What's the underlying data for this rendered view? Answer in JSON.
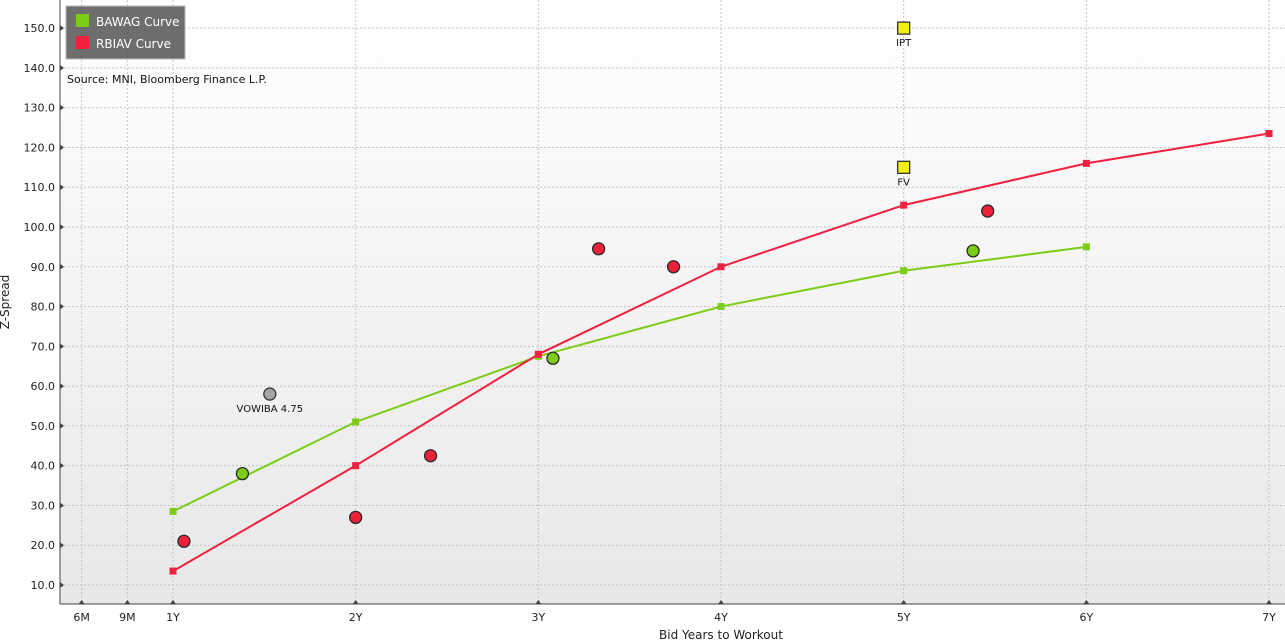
{
  "chart_data": {
    "type": "scatter",
    "xlabel": "Bid Years to Workout",
    "ylabel": "Z-Spread",
    "source": "Source: MNI, Bloomberg Finance L.P.",
    "xlim": [
      0.5,
      7.2
    ],
    "ylim": [
      5,
      155
    ],
    "x_ticks": [
      {
        "value": 0.5,
        "label": "6M"
      },
      {
        "value": 0.75,
        "label": "9M"
      },
      {
        "value": 1,
        "label": "1Y"
      },
      {
        "value": 2,
        "label": "2Y"
      },
      {
        "value": 3,
        "label": "3Y"
      },
      {
        "value": 4,
        "label": "4Y"
      },
      {
        "value": 5,
        "label": "5Y"
      },
      {
        "value": 6,
        "label": "6Y"
      },
      {
        "value": 7,
        "label": "7Y"
      }
    ],
    "y_ticks": [
      {
        "value": 10,
        "label": "10.0"
      },
      {
        "value": 20,
        "label": "20.0"
      },
      {
        "value": 30,
        "label": "30.0"
      },
      {
        "value": 40,
        "label": "40.0"
      },
      {
        "value": 50,
        "label": "50.0"
      },
      {
        "value": 60,
        "label": "60.0"
      },
      {
        "value": 70,
        "label": "70.0"
      },
      {
        "value": 80,
        "label": "80.0"
      },
      {
        "value": 90,
        "label": "90.0"
      },
      {
        "value": 100,
        "label": "100.0"
      },
      {
        "value": 110,
        "label": "110.0"
      },
      {
        "value": 120,
        "label": "120.0"
      },
      {
        "value": 130,
        "label": "130.0"
      },
      {
        "value": 140,
        "label": "140.0"
      },
      {
        "value": 150,
        "label": "150.0"
      }
    ],
    "grid": true,
    "legend": {
      "position": "top-left",
      "entries": [
        "BAWAG Curve",
        "RBIAV Curve"
      ]
    },
    "curves": [
      {
        "name": "BAWAG Curve",
        "color": "#7ccd17",
        "x": [
          1,
          2,
          3,
          4,
          5,
          6
        ],
        "y": [
          28.5,
          51,
          67.5,
          80,
          89,
          95
        ]
      },
      {
        "name": "RBIAV Curve",
        "color": "#f0203f",
        "x": [
          1,
          2,
          3,
          4,
          5,
          6,
          7
        ],
        "y": [
          13.5,
          40,
          68,
          90,
          105.5,
          116,
          123.5
        ]
      }
    ],
    "bonds": [
      {
        "group": "BAWAG",
        "color": "#7ccd17",
        "points": [
          {
            "x": 1.38,
            "y": 38
          },
          {
            "x": 3.08,
            "y": 67
          },
          {
            "x": 5.38,
            "y": 94
          }
        ]
      },
      {
        "group": "RBIAV",
        "color": "#ea2139",
        "points": [
          {
            "x": 1.06,
            "y": 21
          },
          {
            "x": 2.0,
            "y": 27
          },
          {
            "x": 2.41,
            "y": 42.5
          },
          {
            "x": 3.33,
            "y": 94.5
          },
          {
            "x": 3.74,
            "y": 90
          },
          {
            "x": 5.46,
            "y": 104
          }
        ]
      }
    ],
    "annotations": [
      {
        "label": "VOWIBA 4.75",
        "x": 1.53,
        "y": 58,
        "marker": "circle",
        "color": "#a4a4a4"
      },
      {
        "label": "IPT",
        "x": 5.0,
        "y": 150,
        "marker": "square",
        "color": "#f4ee17"
      },
      {
        "label": "FV",
        "x": 5.0,
        "y": 115,
        "marker": "square",
        "color": "#f4ee17"
      }
    ]
  }
}
